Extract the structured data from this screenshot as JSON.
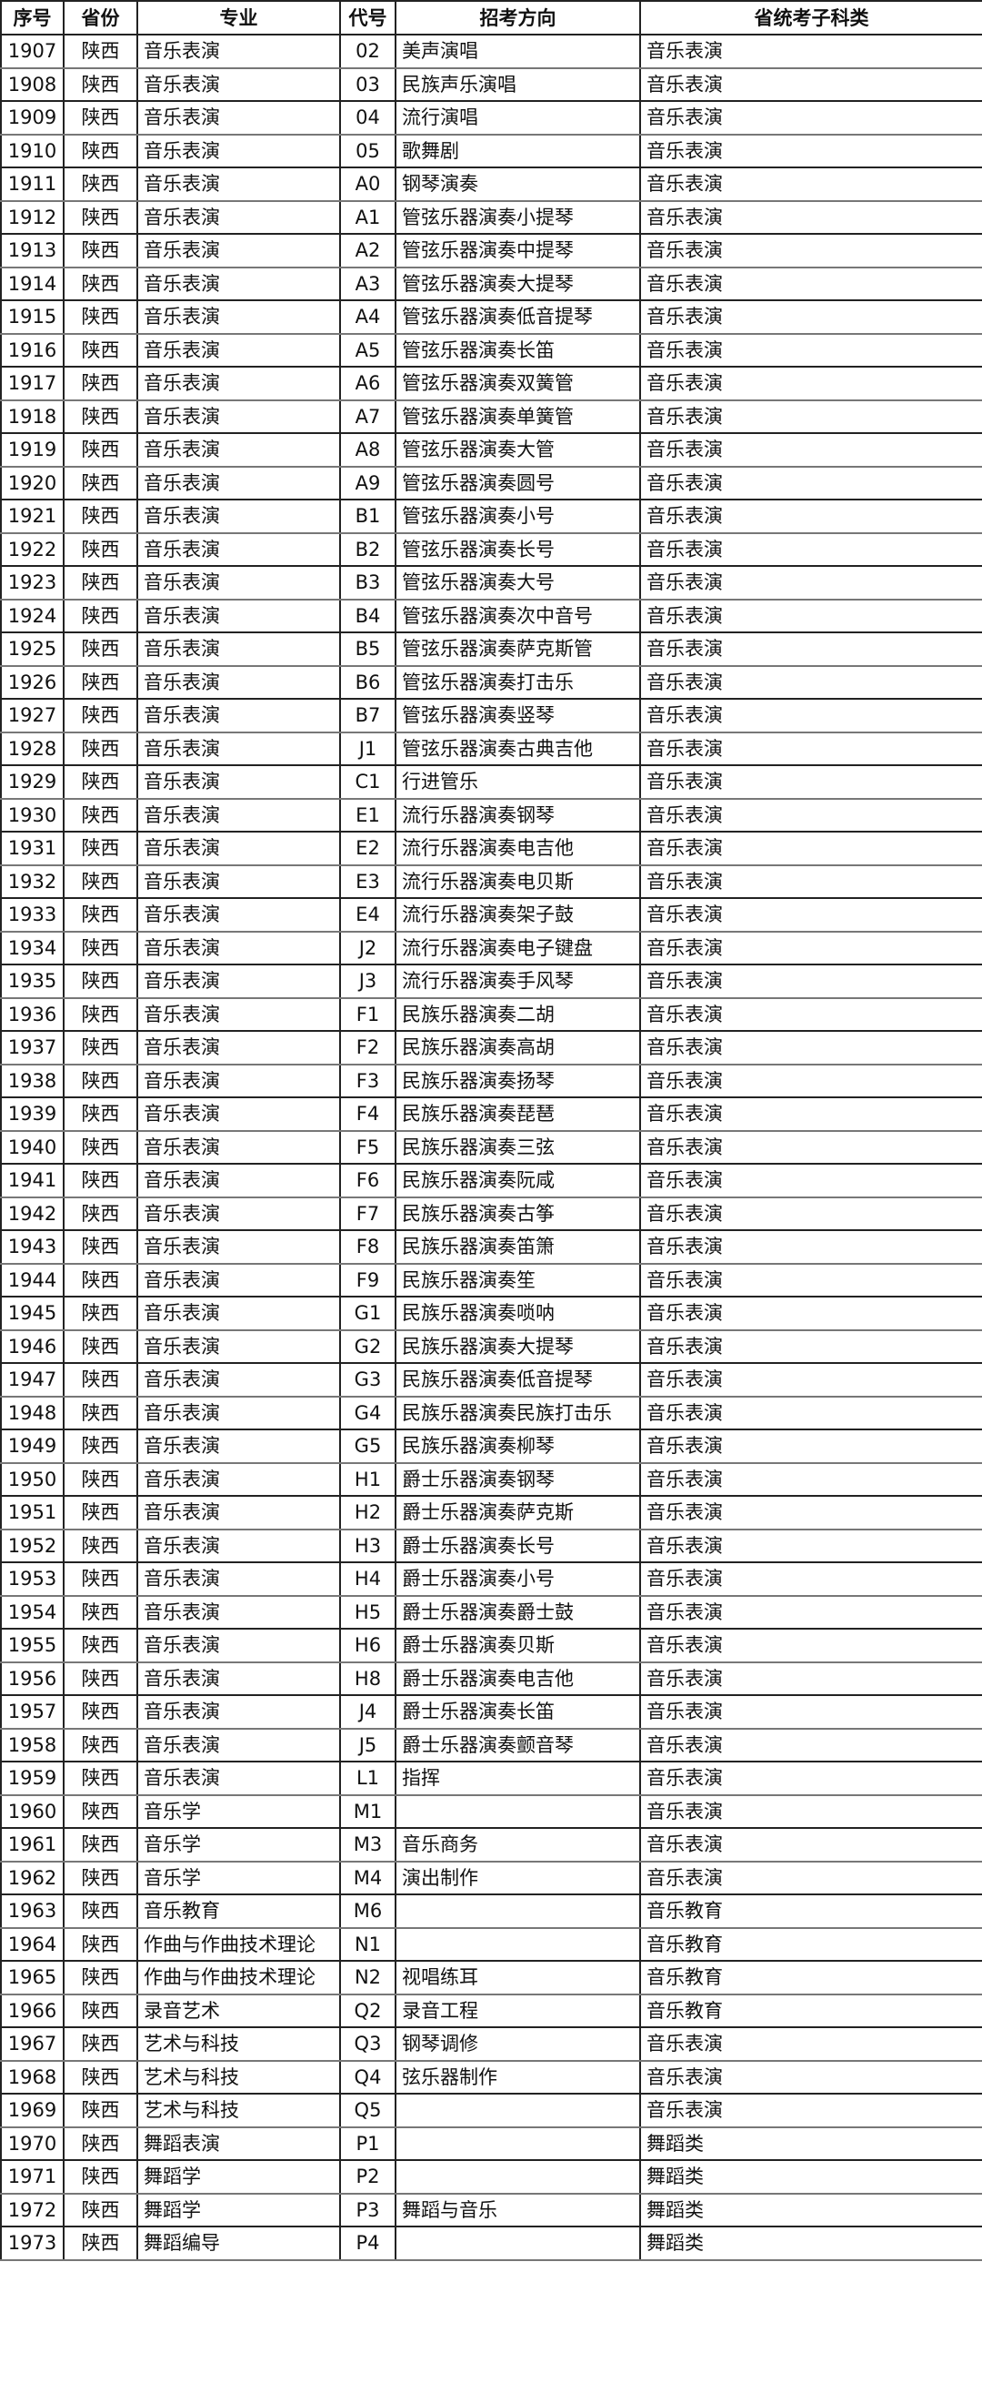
{
  "headers": [
    "序号",
    "省份",
    "专业",
    "代号",
    "招考方向",
    "省统考子科类"
  ],
  "rows": [
    [
      "1907",
      "陕西",
      "音乐表演",
      "02",
      "美声演唱",
      "音乐表演"
    ],
    [
      "1908",
      "陕西",
      "音乐表演",
      "03",
      "民族声乐演唱",
      "音乐表演"
    ],
    [
      "1909",
      "陕西",
      "音乐表演",
      "04",
      "流行演唱",
      "音乐表演"
    ],
    [
      "1910",
      "陕西",
      "音乐表演",
      "05",
      "歌舞剧",
      "音乐表演"
    ],
    [
      "1911",
      "陕西",
      "音乐表演",
      "A0",
      "钢琴演奏",
      "音乐表演"
    ],
    [
      "1912",
      "陕西",
      "音乐表演",
      "A1",
      "管弦乐器演奏小提琴",
      "音乐表演"
    ],
    [
      "1913",
      "陕西",
      "音乐表演",
      "A2",
      "管弦乐器演奏中提琴",
      "音乐表演"
    ],
    [
      "1914",
      "陕西",
      "音乐表演",
      "A3",
      "管弦乐器演奏大提琴",
      "音乐表演"
    ],
    [
      "1915",
      "陕西",
      "音乐表演",
      "A4",
      "管弦乐器演奏低音提琴",
      "音乐表演"
    ],
    [
      "1916",
      "陕西",
      "音乐表演",
      "A5",
      "管弦乐器演奏长笛",
      "音乐表演"
    ],
    [
      "1917",
      "陕西",
      "音乐表演",
      "A6",
      "管弦乐器演奏双簧管",
      "音乐表演"
    ],
    [
      "1918",
      "陕西",
      "音乐表演",
      "A7",
      "管弦乐器演奏单簧管",
      "音乐表演"
    ],
    [
      "1919",
      "陕西",
      "音乐表演",
      "A8",
      "管弦乐器演奏大管",
      "音乐表演"
    ],
    [
      "1920",
      "陕西",
      "音乐表演",
      "A9",
      "管弦乐器演奏圆号",
      "音乐表演"
    ],
    [
      "1921",
      "陕西",
      "音乐表演",
      "B1",
      "管弦乐器演奏小号",
      "音乐表演"
    ],
    [
      "1922",
      "陕西",
      "音乐表演",
      "B2",
      "管弦乐器演奏长号",
      "音乐表演"
    ],
    [
      "1923",
      "陕西",
      "音乐表演",
      "B3",
      "管弦乐器演奏大号",
      "音乐表演"
    ],
    [
      "1924",
      "陕西",
      "音乐表演",
      "B4",
      "管弦乐器演奏次中音号",
      "音乐表演"
    ],
    [
      "1925",
      "陕西",
      "音乐表演",
      "B5",
      "管弦乐器演奏萨克斯管",
      "音乐表演"
    ],
    [
      "1926",
      "陕西",
      "音乐表演",
      "B6",
      "管弦乐器演奏打击乐",
      "音乐表演"
    ],
    [
      "1927",
      "陕西",
      "音乐表演",
      "B7",
      "管弦乐器演奏竖琴",
      "音乐表演"
    ],
    [
      "1928",
      "陕西",
      "音乐表演",
      "J1",
      "管弦乐器演奏古典吉他",
      "音乐表演"
    ],
    [
      "1929",
      "陕西",
      "音乐表演",
      "C1",
      "行进管乐",
      "音乐表演"
    ],
    [
      "1930",
      "陕西",
      "音乐表演",
      "E1",
      "流行乐器演奏钢琴",
      "音乐表演"
    ],
    [
      "1931",
      "陕西",
      "音乐表演",
      "E2",
      "流行乐器演奏电吉他",
      "音乐表演"
    ],
    [
      "1932",
      "陕西",
      "音乐表演",
      "E3",
      "流行乐器演奏电贝斯",
      "音乐表演"
    ],
    [
      "1933",
      "陕西",
      "音乐表演",
      "E4",
      "流行乐器演奏架子鼓",
      "音乐表演"
    ],
    [
      "1934",
      "陕西",
      "音乐表演",
      "J2",
      "流行乐器演奏电子键盘",
      "音乐表演"
    ],
    [
      "1935",
      "陕西",
      "音乐表演",
      "J3",
      "流行乐器演奏手风琴",
      "音乐表演"
    ],
    [
      "1936",
      "陕西",
      "音乐表演",
      "F1",
      "民族乐器演奏二胡",
      "音乐表演"
    ],
    [
      "1937",
      "陕西",
      "音乐表演",
      "F2",
      "民族乐器演奏高胡",
      "音乐表演"
    ],
    [
      "1938",
      "陕西",
      "音乐表演",
      "F3",
      "民族乐器演奏扬琴",
      "音乐表演"
    ],
    [
      "1939",
      "陕西",
      "音乐表演",
      "F4",
      "民族乐器演奏琵琶",
      "音乐表演"
    ],
    [
      "1940",
      "陕西",
      "音乐表演",
      "F5",
      "民族乐器演奏三弦",
      "音乐表演"
    ],
    [
      "1941",
      "陕西",
      "音乐表演",
      "F6",
      "民族乐器演奏阮咸",
      "音乐表演"
    ],
    [
      "1942",
      "陕西",
      "音乐表演",
      "F7",
      "民族乐器演奏古筝",
      "音乐表演"
    ],
    [
      "1943",
      "陕西",
      "音乐表演",
      "F8",
      "民族乐器演奏笛箫",
      "音乐表演"
    ],
    [
      "1944",
      "陕西",
      "音乐表演",
      "F9",
      "民族乐器演奏笙",
      "音乐表演"
    ],
    [
      "1945",
      "陕西",
      "音乐表演",
      "G1",
      "民族乐器演奏唢呐",
      "音乐表演"
    ],
    [
      "1946",
      "陕西",
      "音乐表演",
      "G2",
      "民族乐器演奏大提琴",
      "音乐表演"
    ],
    [
      "1947",
      "陕西",
      "音乐表演",
      "G3",
      "民族乐器演奏低音提琴",
      "音乐表演"
    ],
    [
      "1948",
      "陕西",
      "音乐表演",
      "G4",
      "民族乐器演奏民族打击乐",
      "音乐表演"
    ],
    [
      "1949",
      "陕西",
      "音乐表演",
      "G5",
      "民族乐器演奏柳琴",
      "音乐表演"
    ],
    [
      "1950",
      "陕西",
      "音乐表演",
      "H1",
      "爵士乐器演奏钢琴",
      "音乐表演"
    ],
    [
      "1951",
      "陕西",
      "音乐表演",
      "H2",
      "爵士乐器演奏萨克斯",
      "音乐表演"
    ],
    [
      "1952",
      "陕西",
      "音乐表演",
      "H3",
      "爵士乐器演奏长号",
      "音乐表演"
    ],
    [
      "1953",
      "陕西",
      "音乐表演",
      "H4",
      "爵士乐器演奏小号",
      "音乐表演"
    ],
    [
      "1954",
      "陕西",
      "音乐表演",
      "H5",
      "爵士乐器演奏爵士鼓",
      "音乐表演"
    ],
    [
      "1955",
      "陕西",
      "音乐表演",
      "H6",
      "爵士乐器演奏贝斯",
      "音乐表演"
    ],
    [
      "1956",
      "陕西",
      "音乐表演",
      "H8",
      "爵士乐器演奏电吉他",
      "音乐表演"
    ],
    [
      "1957",
      "陕西",
      "音乐表演",
      "J4",
      "爵士乐器演奏长笛",
      "音乐表演"
    ],
    [
      "1958",
      "陕西",
      "音乐表演",
      "J5",
      "爵士乐器演奏颤音琴",
      "音乐表演"
    ],
    [
      "1959",
      "陕西",
      "音乐表演",
      "L1",
      "指挥",
      "音乐表演"
    ],
    [
      "1960",
      "陕西",
      "音乐学",
      "M1",
      "",
      "音乐表演"
    ],
    [
      "1961",
      "陕西",
      "音乐学",
      "M3",
      "音乐商务",
      "音乐表演"
    ],
    [
      "1962",
      "陕西",
      "音乐学",
      "M4",
      "演出制作",
      "音乐表演"
    ],
    [
      "1963",
      "陕西",
      "音乐教育",
      "M6",
      "",
      "音乐教育"
    ],
    [
      "1964",
      "陕西",
      "作曲与作曲技术理论",
      "N1",
      "",
      "音乐教育"
    ],
    [
      "1965",
      "陕西",
      "作曲与作曲技术理论",
      "N2",
      "视唱练耳",
      "音乐教育"
    ],
    [
      "1966",
      "陕西",
      "录音艺术",
      "Q2",
      "录音工程",
      "音乐教育"
    ],
    [
      "1967",
      "陕西",
      "艺术与科技",
      "Q3",
      "钢琴调修",
      "音乐表演"
    ],
    [
      "1968",
      "陕西",
      "艺术与科技",
      "Q4",
      "弦乐器制作",
      "音乐表演"
    ],
    [
      "1969",
      "陕西",
      "艺术与科技",
      "Q5",
      "",
      "音乐表演"
    ],
    [
      "1970",
      "陕西",
      "舞蹈表演",
      "P1",
      "",
      "舞蹈类"
    ],
    [
      "1971",
      "陕西",
      "舞蹈学",
      "P2",
      "",
      "舞蹈类"
    ],
    [
      "1972",
      "陕西",
      "舞蹈学",
      "P3",
      "舞蹈与音乐",
      "舞蹈类"
    ],
    [
      "1973",
      "陕西",
      "舞蹈编导",
      "P4",
      "",
      "舞蹈类"
    ]
  ]
}
